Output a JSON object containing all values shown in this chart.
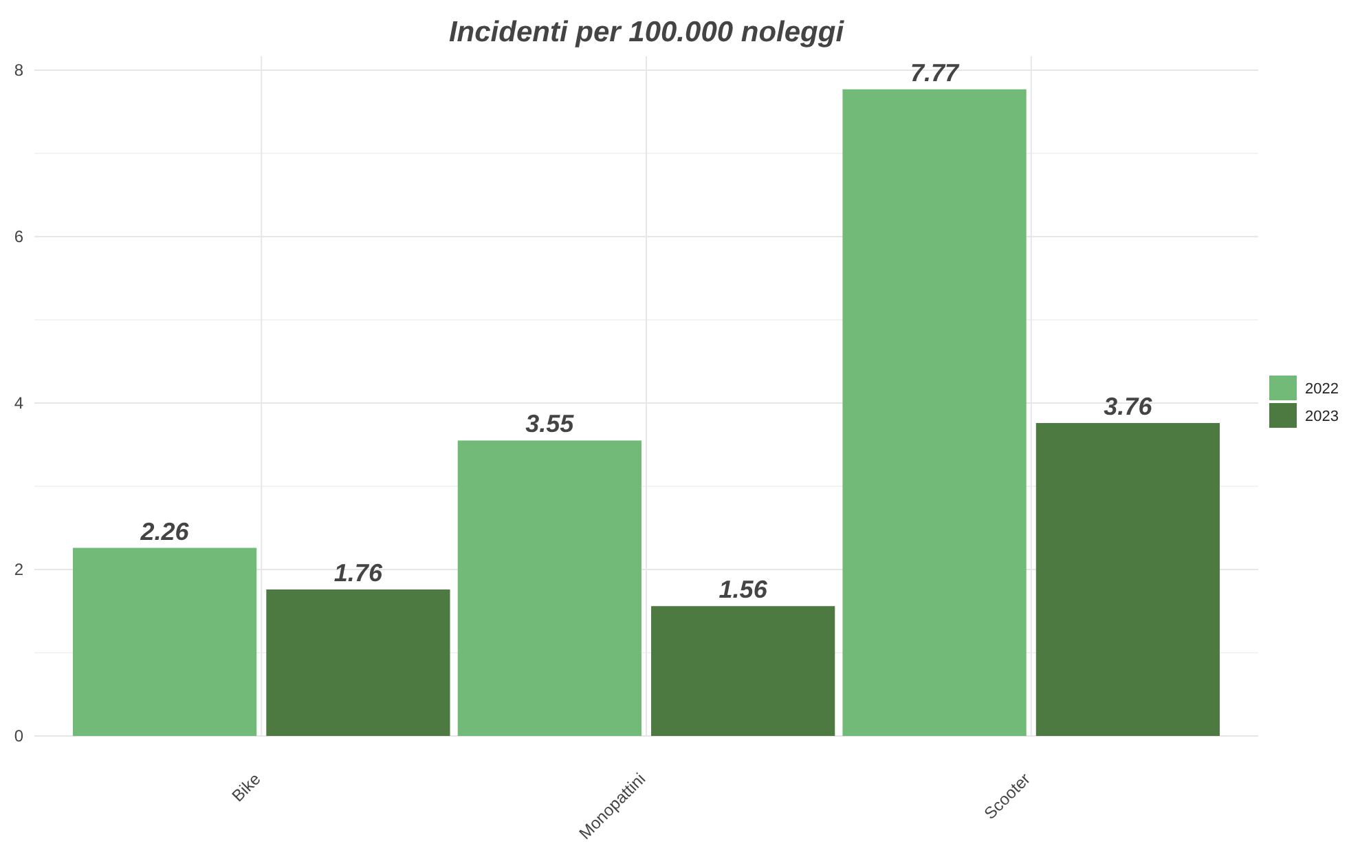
{
  "chart_data": {
    "type": "bar",
    "title": "Incidenti per 100.000 noleggi",
    "categories": [
      "Bike",
      "Monopattini",
      "Scooter"
    ],
    "series": [
      {
        "name": "2022",
        "color": "#72ba78",
        "values": [
          2.26,
          3.55,
          7.77
        ]
      },
      {
        "name": "2023",
        "color": "#4d7a41",
        "values": [
          1.76,
          1.56,
          3.76
        ]
      }
    ],
    "ylim": [
      0,
      8
    ],
    "yticks": [
      0,
      {
        "value": 1,
        "label": null
      },
      2,
      {
        "value": 3,
        "label": null
      },
      4,
      {
        "value": 5,
        "label": null
      },
      6,
      {
        "value": 7,
        "label": null
      },
      8
    ],
    "grid": true,
    "legend": "right",
    "data_labels": true
  }
}
